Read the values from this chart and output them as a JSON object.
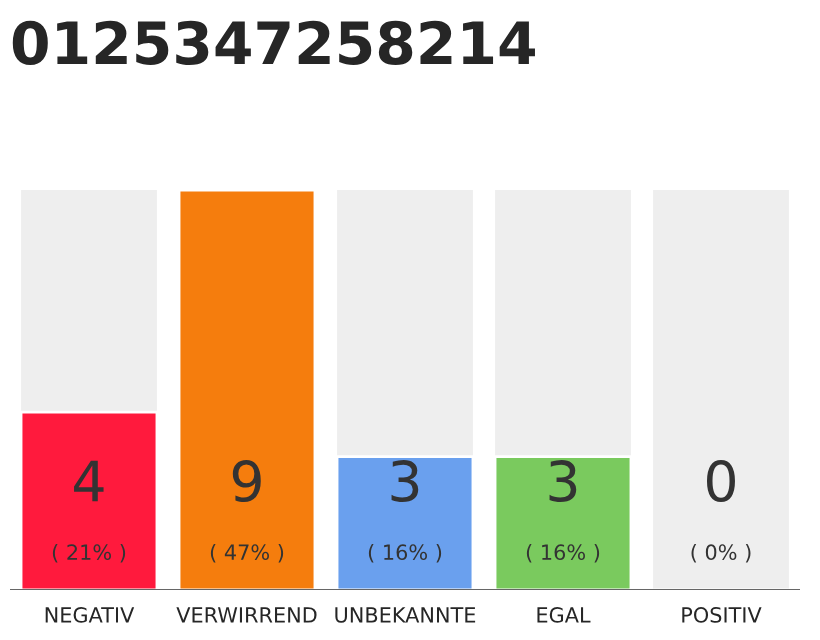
{
  "chart_data": {
    "type": "bar",
    "title": "0125347258214",
    "categories": [
      "NEGATIV",
      "VERWIRREND",
      "UNBEKANNTE",
      "EGAL",
      "POSITIV"
    ],
    "values": [
      4,
      9,
      3,
      3,
      0
    ],
    "colors": [
      "#ff1a3d",
      "#f57d0d",
      "#6aa0ee",
      "#7aca5e",
      null
    ],
    "value_labels": [
      "4\n( 21% )",
      "9\n( 47% )",
      "3\n( 16% )",
      "3\n( 16% )",
      "0\n( 0% )"
    ],
    "tick_labels": "x",
    "grid": false,
    "legend": false
  }
}
